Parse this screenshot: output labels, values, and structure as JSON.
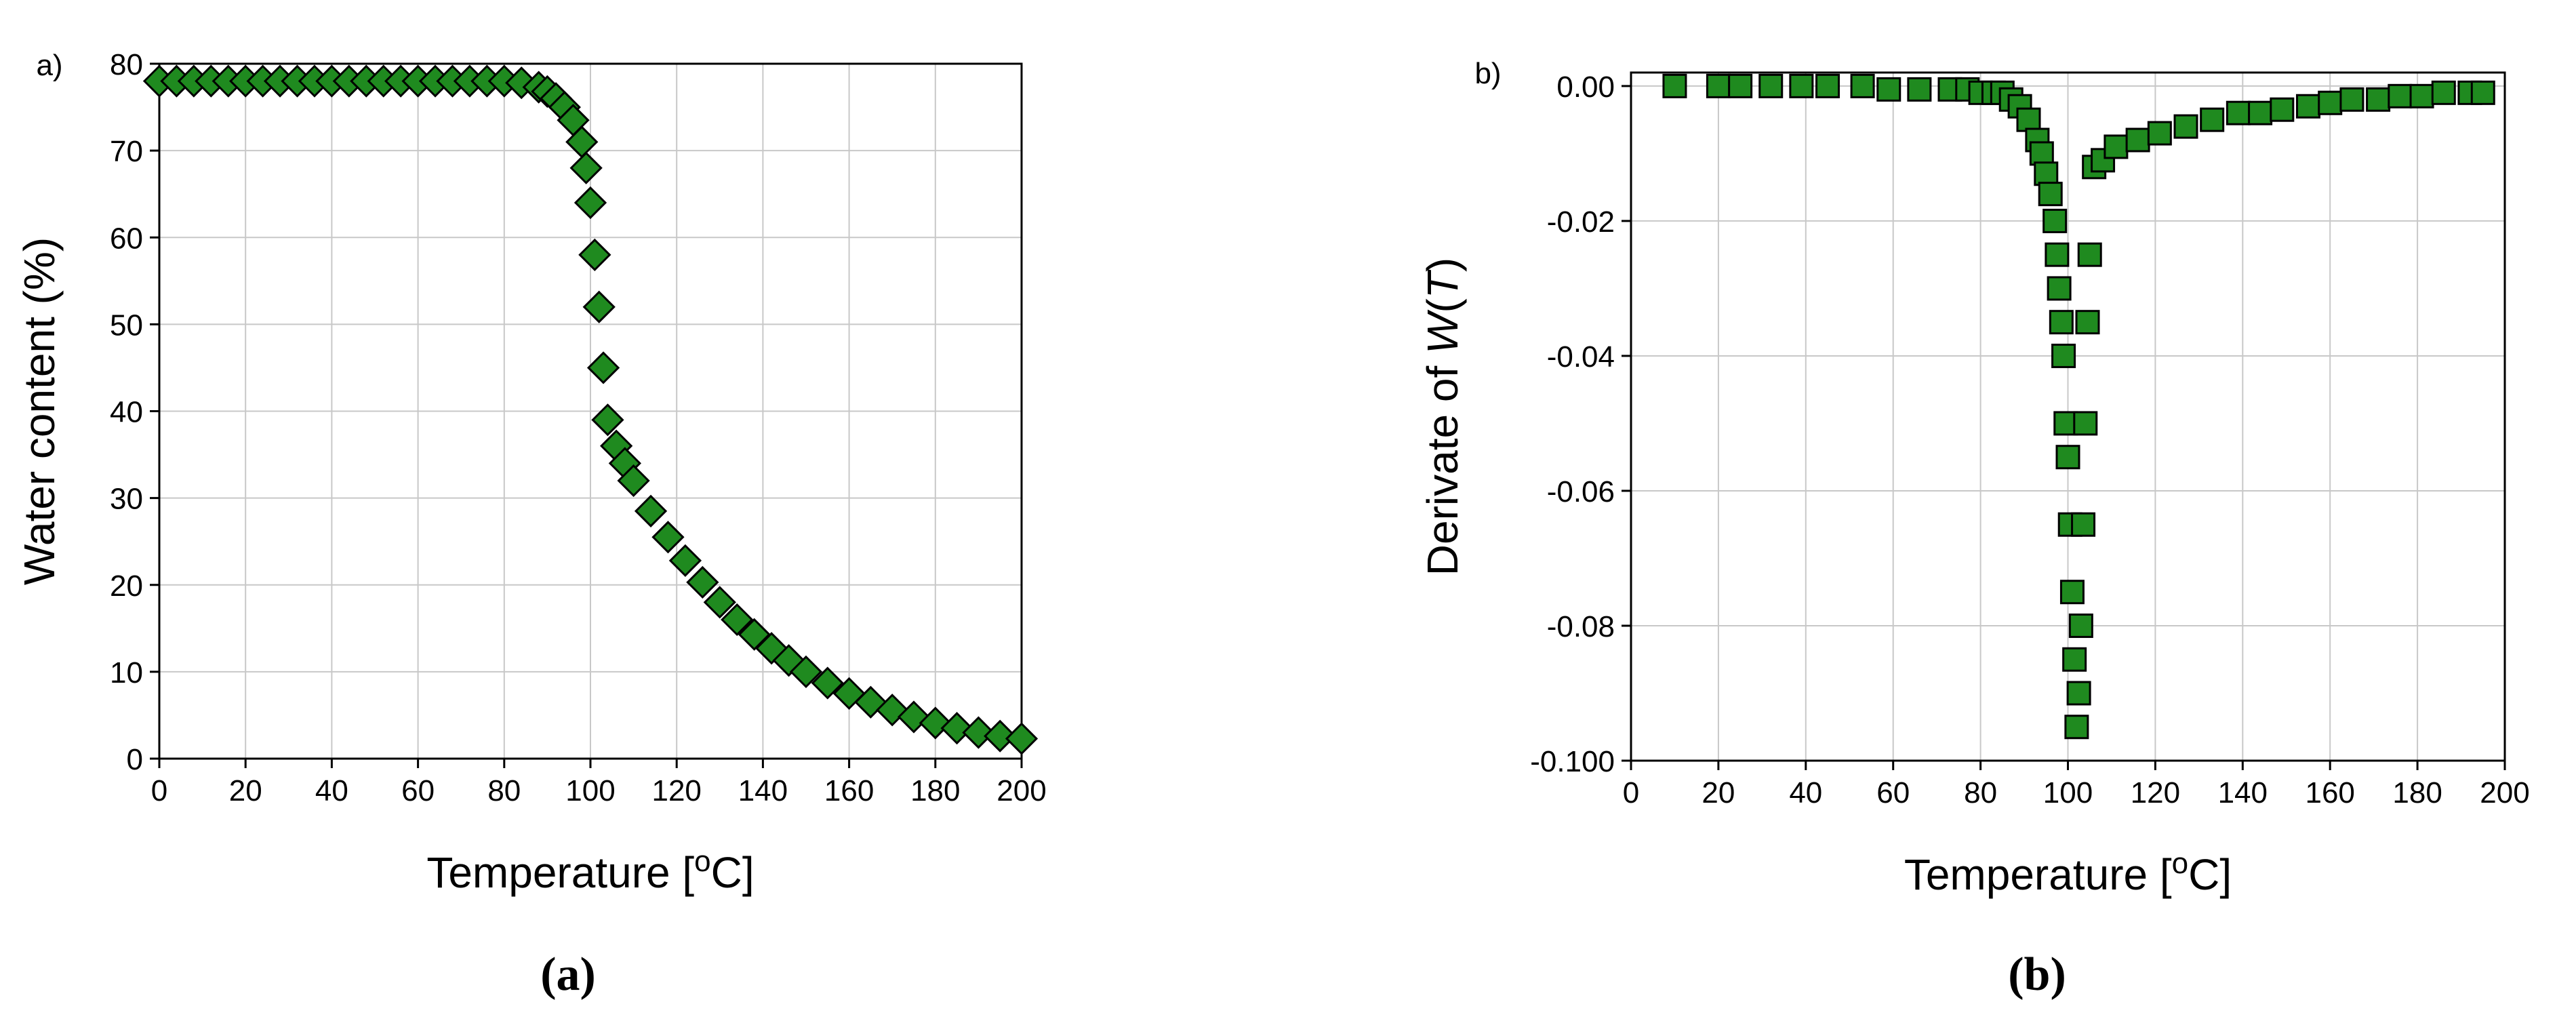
{
  "chart_data": [
    {
      "type": "scatter",
      "panel_label": "a)",
      "caption": "(a)",
      "x_label": [
        "Temperature [",
        "o",
        "C]"
      ],
      "y_label": [
        "Water content (%)"
      ],
      "marker": "diamond",
      "color": "#1f8a1f",
      "grid": true,
      "xlim": [
        0,
        200
      ],
      "xticks": [
        0,
        20,
        40,
        60,
        80,
        100,
        120,
        140,
        160,
        180,
        200
      ],
      "ylim": [
        0,
        80
      ],
      "yticks": [
        0,
        10,
        20,
        30,
        40,
        50,
        60,
        70,
        80
      ],
      "x": [
        0,
        4,
        8,
        12,
        16,
        20,
        24,
        28,
        32,
        36,
        40,
        44,
        48,
        52,
        56,
        60,
        64,
        68,
        72,
        76,
        80,
        84,
        88,
        90,
        92,
        94,
        96,
        98,
        99,
        100,
        101,
        102,
        103,
        104,
        106,
        108,
        110,
        114,
        118,
        122,
        126,
        130,
        134,
        138,
        142,
        146,
        150,
        155,
        160,
        165,
        170,
        175,
        180,
        185,
        190,
        195,
        200
      ],
      "values": [
        78,
        78,
        78,
        78,
        78,
        78,
        78,
        78,
        78,
        78,
        78,
        78,
        78,
        78,
        78,
        78,
        78,
        78,
        78,
        78,
        78,
        77.8,
        77.3,
        76.8,
        76,
        75,
        73.5,
        71,
        68,
        64,
        58,
        52,
        45,
        39,
        36,
        34,
        32,
        28.5,
        25.5,
        22.8,
        20.3,
        18,
        16,
        14.3,
        12.7,
        11.3,
        10,
        8.7,
        7.5,
        6.5,
        5.6,
        4.8,
        4.1,
        3.5,
        3.0,
        2.6,
        2.3
      ]
    },
    {
      "type": "scatter",
      "panel_label": "b)",
      "caption": "(b)",
      "x_label": [
        "Temperature [",
        "o",
        "C]"
      ],
      "y_label": [
        "Derivate of ",
        "W",
        "(",
        "T",
        ")"
      ],
      "marker": "square",
      "color": "#1f8a1f",
      "grid": true,
      "xlim": [
        0,
        200
      ],
      "xticks": [
        0,
        20,
        40,
        60,
        80,
        100,
        120,
        140,
        160,
        180,
        200
      ],
      "ylim": [
        -0.1,
        0.002
      ],
      "yticks": [
        {
          "value": 0,
          "label": "0.00"
        },
        {
          "value": -0.02,
          "label": "-0.02"
        },
        {
          "value": -0.04,
          "label": "-0.04"
        },
        {
          "value": -0.06,
          "label": "-0.06"
        },
        {
          "value": -0.08,
          "label": "-0.08"
        },
        {
          "value": -0.1,
          "label": "-0.100"
        }
      ],
      "x": [
        10,
        20,
        25,
        32,
        39,
        45,
        53,
        59,
        66,
        73,
        77,
        80,
        83,
        85,
        87,
        89,
        91,
        93,
        94,
        95,
        96,
        97,
        97.5,
        98,
        98.5,
        99,
        99.5,
        100,
        100.5,
        101,
        101.5,
        102,
        102.5,
        103,
        103.5,
        104,
        104.5,
        105,
        106,
        108,
        111,
        116,
        121,
        127,
        133,
        139,
        144,
        149,
        155,
        160,
        165,
        171,
        176,
        181,
        186,
        192,
        195
      ],
      "values": [
        0,
        0,
        0,
        0,
        0,
        0,
        0,
        -0.0005,
        -0.0005,
        -0.0005,
        -0.0005,
        -0.001,
        -0.001,
        -0.001,
        -0.002,
        -0.003,
        -0.005,
        -0.008,
        -0.01,
        -0.013,
        -0.016,
        -0.02,
        -0.025,
        -0.03,
        -0.035,
        -0.04,
        -0.05,
        -0.055,
        -0.065,
        -0.075,
        -0.085,
        -0.095,
        -0.09,
        -0.08,
        -0.065,
        -0.05,
        -0.035,
        -0.025,
        -0.012,
        -0.011,
        -0.009,
        -0.008,
        -0.007,
        -0.006,
        -0.005,
        -0.004,
        -0.004,
        -0.0035,
        -0.003,
        -0.0025,
        -0.002,
        -0.002,
        -0.0015,
        -0.0015,
        -0.001,
        -0.001,
        -0.001
      ]
    }
  ]
}
